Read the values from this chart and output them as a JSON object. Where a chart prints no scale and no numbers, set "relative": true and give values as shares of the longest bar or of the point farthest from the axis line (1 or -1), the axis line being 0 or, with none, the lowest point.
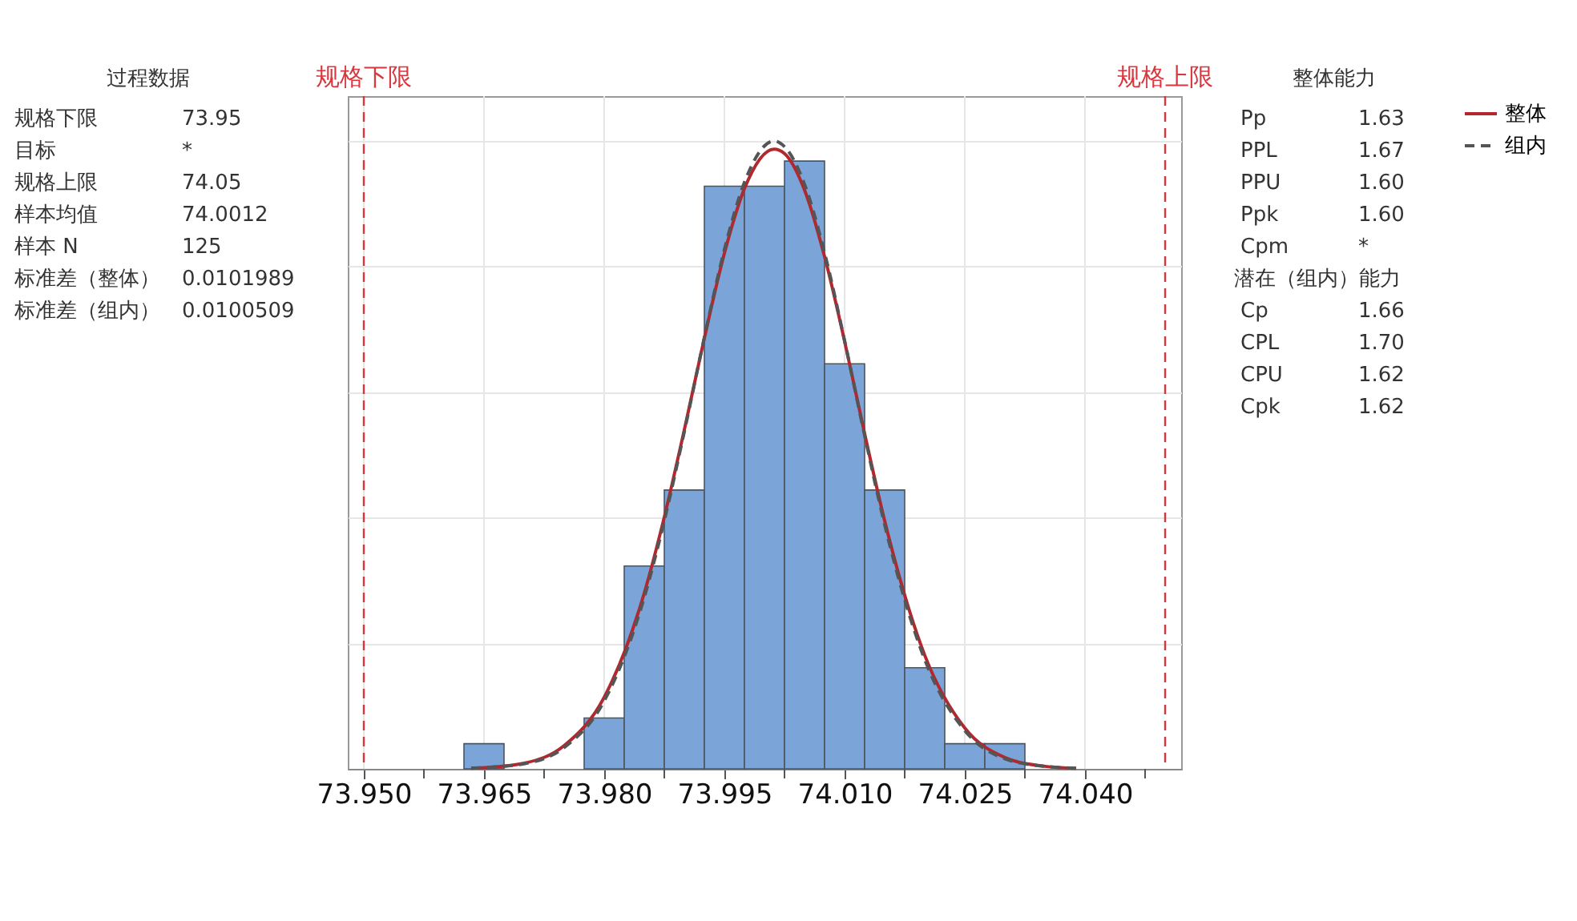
{
  "chart_data": [
    {
      "type": "other",
      "title": "过程数据",
      "annotations": [
        "规格下限 73.95",
        "目标 *",
        "规格上限 74.05",
        "样本均值 74.0012",
        "样本 N 125",
        "标准差（整体） 0.0101989",
        "标准差（组内） 0.0100509"
      ]
    },
    {
      "type": "histogram",
      "relative": true,
      "color": "#7ba4d8",
      "bins": [
        73.9625,
        73.9675,
        73.9725,
        73.9775,
        73.9825,
        73.9875,
        73.9925,
        73.9975,
        74.0025,
        74.0075,
        74.0125,
        74.0175,
        74.0225,
        74.0275,
        74.0325
      ],
      "values": [
        0.04,
        0,
        0,
        0.081,
        0.323,
        0.444,
        0.928,
        0.928,
        0.968,
        0.645,
        0.444,
        0.161,
        0.04,
        0.04
      ],
      "series": [
        {
          "name": "整体",
          "type": "line",
          "color": "#b2282e",
          "line_style": "solid",
          "x": [
            73.9634,
            73.965,
            73.97,
            73.975,
            73.98,
            73.985,
            73.9875,
            73.99,
            73.9925,
            73.995,
            73.9975,
            74.0012,
            74.0025,
            74.005,
            74.0075,
            74.01,
            74.0125,
            74.015,
            74.02,
            74.025,
            74.03,
            74.035,
            74.0389
          ],
          "values": [
            0.001,
            0.002,
            0.009,
            0.037,
            0.114,
            0.28,
            0.401,
            0.54,
            0.686,
            0.821,
            0.924,
            0.987,
            0.98,
            0.922,
            0.816,
            0.681,
            0.534,
            0.395,
            0.181,
            0.065,
            0.018,
            0.004,
            0.001
          ]
        },
        {
          "name": "组内",
          "type": "line",
          "color": "#555555",
          "line_style": "dashed",
          "x": [
            73.9634,
            73.965,
            73.97,
            73.975,
            73.98,
            73.985,
            73.9875,
            73.99,
            73.9925,
            73.995,
            73.9975,
            74.0012,
            74.0025,
            74.005,
            74.0075,
            74.01,
            74.0125,
            74.015,
            74.02,
            74.025,
            74.03,
            74.035,
            74.0389
          ],
          "values": [
            0.001,
            0.002,
            0.008,
            0.034,
            0.108,
            0.273,
            0.395,
            0.537,
            0.687,
            0.827,
            0.934,
            1.0,
            0.991,
            0.931,
            0.822,
            0.682,
            0.531,
            0.389,
            0.174,
            0.061,
            0.016,
            0.004,
            0.001
          ]
        }
      ],
      "xlim": [
        73.948,
        74.052
      ],
      "xticks": [
        {
          "value": 73.95,
          "label": "73.950"
        },
        {
          "value": 73.9575,
          "label": null
        },
        {
          "value": 73.965,
          "label": "73.965"
        },
        {
          "value": 73.9725,
          "label": null
        },
        {
          "value": 73.98,
          "label": "73.980"
        },
        {
          "value": 73.9875,
          "label": null
        },
        {
          "value": 73.995,
          "label": "73.995"
        },
        {
          "value": 74.0025,
          "label": null
        },
        {
          "value": 74.01,
          "label": "74.010"
        },
        {
          "value": 74.0175,
          "label": null
        },
        {
          "value": 74.025,
          "label": "74.025"
        },
        {
          "value": 74.0325,
          "label": null
        },
        {
          "value": 74.04,
          "label": "74.040"
        },
        {
          "value": 74.0475,
          "label": null
        }
      ],
      "ref_lines": [
        {
          "axis": "x",
          "value": 73.95,
          "label": "规格下限",
          "color": "#d9363e",
          "line_style": "dashed"
        },
        {
          "axis": "x",
          "value": 74.05,
          "label": "规格上限",
          "color": "#d9363e",
          "line_style": "dashed"
        }
      ],
      "grid": true,
      "legend": "top right"
    },
    {
      "type": "other",
      "title": "整体能力",
      "annotations": [
        "Pp 1.63",
        "PPL 1.67",
        "PPU 1.60",
        "Ppk 1.60",
        "Cpm *",
        "潜在（组内）能力",
        "Cp 1.66",
        "CPL 1.70",
        "CPU 1.62",
        "Cpk 1.62"
      ]
    }
  ]
}
